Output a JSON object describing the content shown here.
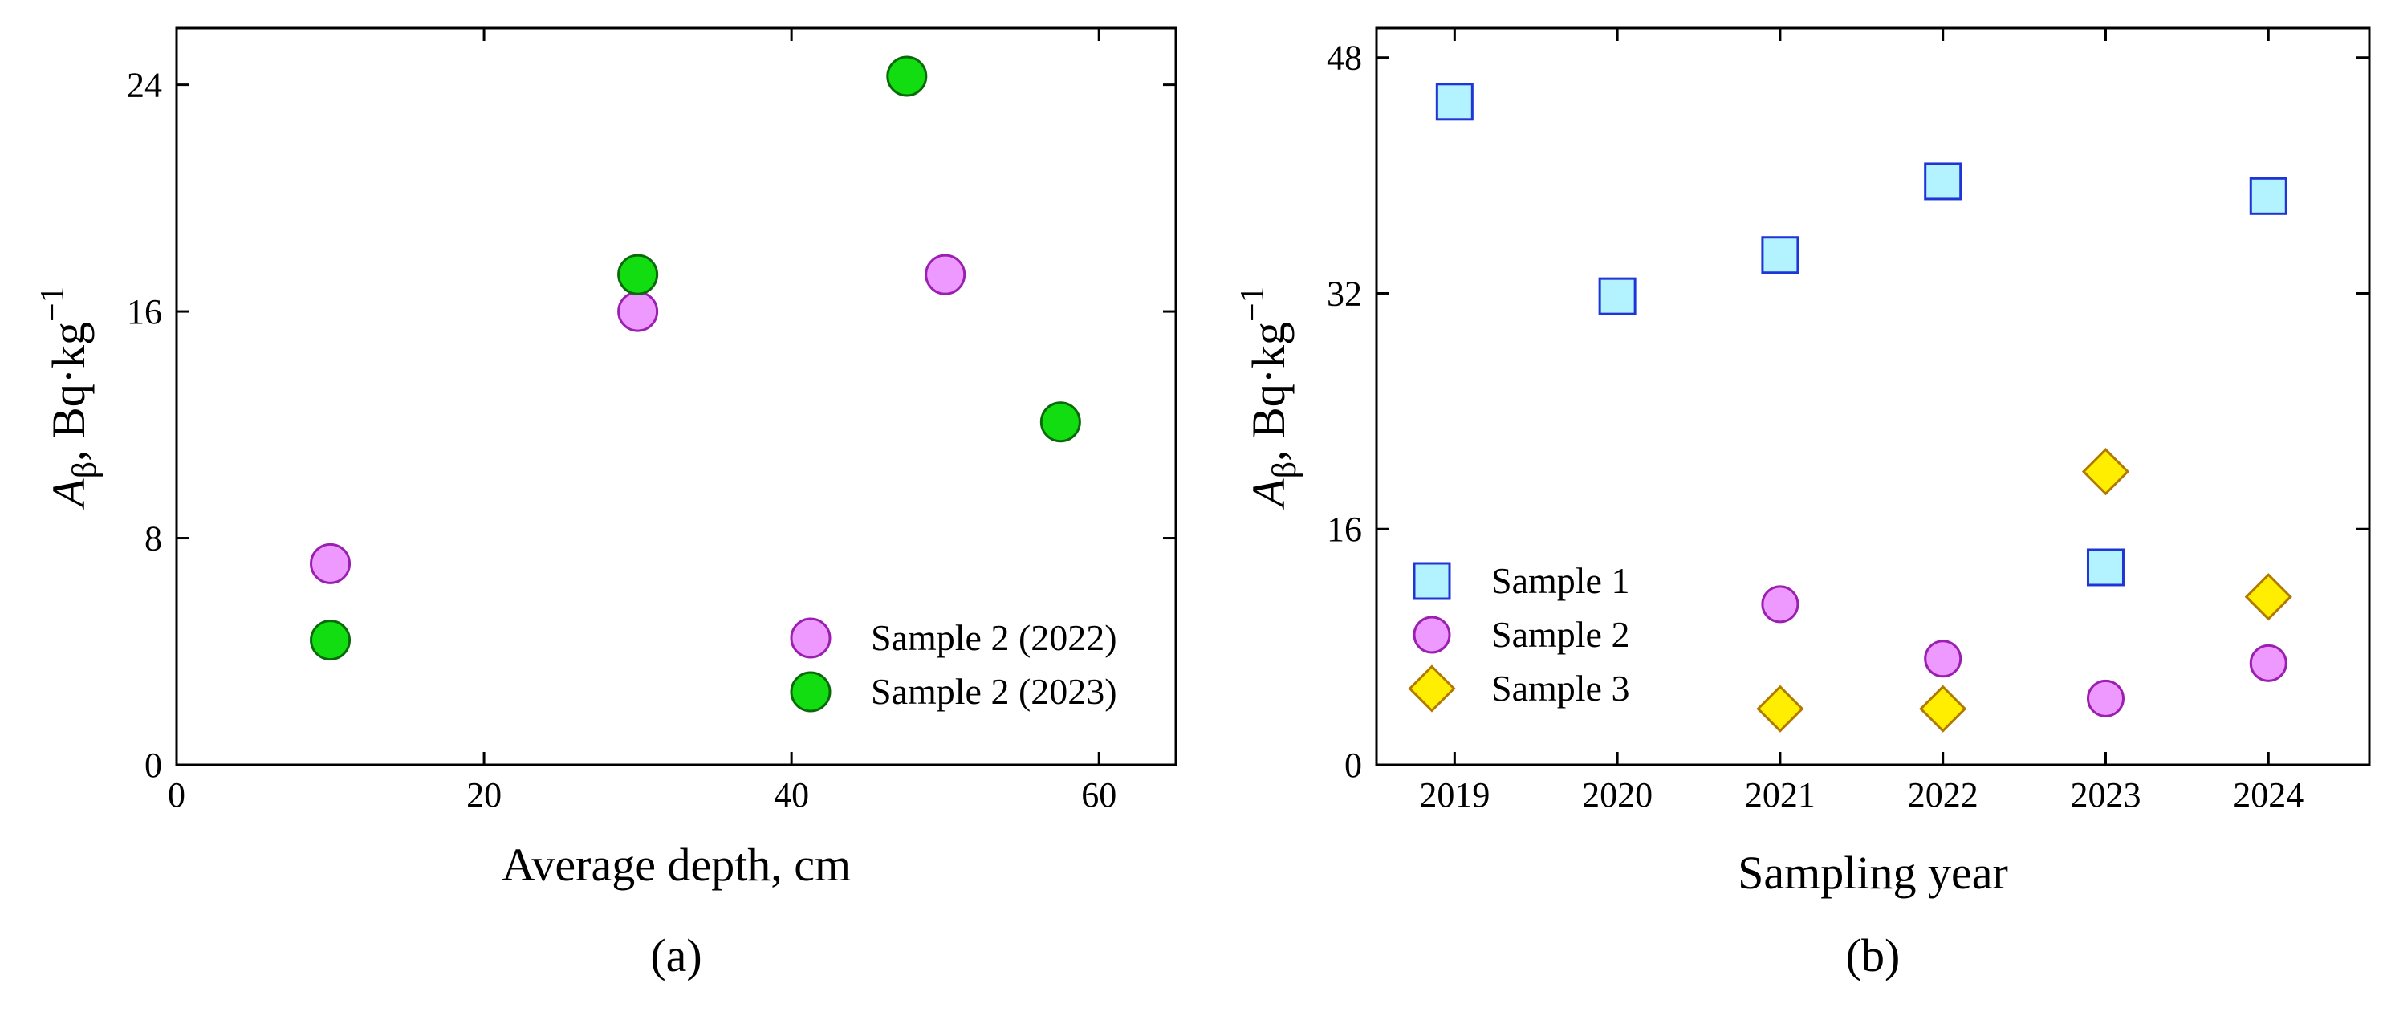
{
  "chart_data": [
    {
      "type": "scatter",
      "panel_label": "(a)",
      "xlabel": "Average depth, cm",
      "ylabel": {
        "symbol": "A",
        "subscript": "β",
        "unit": ", Bq·kg",
        "superscript": "−1"
      },
      "xlim": [
        0,
        65
      ],
      "ylim": [
        0,
        26
      ],
      "xticks": [
        0,
        20,
        40,
        60
      ],
      "yticks": [
        0,
        8,
        16,
        24
      ],
      "legend_position": "bottom-right",
      "grid": false,
      "series": [
        {
          "name": "Sample 2 (2022)",
          "marker": "circle",
          "color": "#ee99ff",
          "edge": "#9b1fb0",
          "points": [
            [
              10,
              7.1
            ],
            [
              30,
              16.0
            ],
            [
              50,
              17.3
            ]
          ]
        },
        {
          "name": "Sample 2 (2023)",
          "marker": "circle",
          "color": "#11dd11",
          "edge": "#0a6a0a",
          "points": [
            [
              10,
              4.4
            ],
            [
              30,
              17.3
            ],
            [
              47.5,
              24.3
            ],
            [
              57.5,
              12.1
            ]
          ]
        }
      ]
    },
    {
      "type": "scatter",
      "panel_label": "(b)",
      "xlabel": "Sampling year",
      "ylabel": {
        "symbol": "A",
        "subscript": "β",
        "unit": ", Bq·kg",
        "superscript": "−1"
      },
      "categories": [
        "2019",
        "2020",
        "2021",
        "2022",
        "2023",
        "2024"
      ],
      "ylim": [
        0,
        50
      ],
      "yticks": [
        0,
        16,
        32,
        48
      ],
      "legend_position": "bottom-left",
      "grid": false,
      "series": [
        {
          "name": "Sample 1",
          "marker": "square",
          "color": "#b3f3ff",
          "edge": "#1f35d6",
          "points": [
            [
              "2019",
              45.0
            ],
            [
              "2020",
              31.8
            ],
            [
              "2021",
              34.6
            ],
            [
              "2022",
              39.6
            ],
            [
              "2023",
              13.4
            ],
            [
              "2024",
              38.6
            ]
          ]
        },
        {
          "name": "Sample 2",
          "marker": "circle",
          "color": "#ee99ff",
          "edge": "#9b1fb0",
          "points": [
            [
              "2021",
              10.9
            ],
            [
              "2022",
              7.2
            ],
            [
              "2023",
              4.5
            ],
            [
              "2024",
              6.9
            ]
          ]
        },
        {
          "name": "Sample 3",
          "marker": "diamond",
          "color": "#ffee00",
          "edge": "#b07a00",
          "points": [
            [
              "2021",
              3.8
            ],
            [
              "2022",
              3.8
            ],
            [
              "2023",
              19.9
            ],
            [
              "2024",
              11.4
            ]
          ]
        }
      ]
    }
  ]
}
